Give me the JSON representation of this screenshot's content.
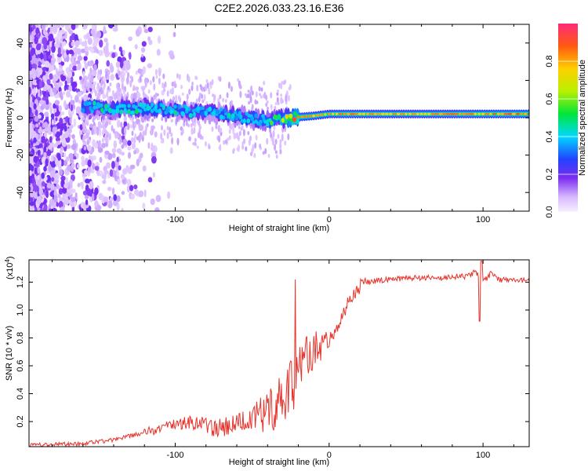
{
  "figure_title": "C2E2.2026.033.23.16.E36",
  "chart_data": [
    {
      "type": "heatmap",
      "title": "C2E2.2026.033.23.16.E36",
      "xlabel": "Height of straight line (km)",
      "ylabel": "Frequency (Hz)",
      "xlim": [
        -195,
        130
      ],
      "ylim": [
        -50,
        50
      ],
      "x_ticks": [
        -100,
        0,
        100
      ],
      "y_ticks": [
        -40,
        -20,
        0,
        20,
        40
      ],
      "colorbar": {
        "label": "Normalized spectral amplitude",
        "range": [
          0,
          1
        ],
        "ticks": [
          0.0,
          0.2,
          0.4,
          0.6,
          0.8
        ]
      },
      "ridge": {
        "x": [
          -160,
          -140,
          -120,
          -100,
          -80,
          -60,
          -45,
          -35,
          -25,
          -10,
          0,
          10,
          50,
          90,
          130
        ],
        "freq": [
          6,
          5,
          5,
          4,
          3,
          1,
          -1,
          -2,
          0,
          1,
          2,
          2,
          2,
          2,
          2
        ],
        "amplitude": [
          0.45,
          0.5,
          0.48,
          0.45,
          0.42,
          0.45,
          0.5,
          0.55,
          0.9,
          0.85,
          0.8,
          0.85,
          0.8,
          0.85,
          0.9
        ]
      }
    },
    {
      "type": "line",
      "xlabel": "Height of straight line (km)",
      "ylabel": "SNR (10 * v/v)",
      "scale_label": "(x10",
      "scale_exponent": "4",
      "xlim": [
        -195,
        130
      ],
      "ylim": [
        0.02,
        1.36
      ],
      "x_ticks": [
        -100,
        0,
        100
      ],
      "y_ticks": [
        0.2,
        0.4,
        0.6,
        0.8,
        1.0,
        1.2
      ],
      "series": [
        {
          "name": "SNR",
          "color": "#e8322a",
          "x": [
            -195,
            -160,
            -140,
            -120,
            -100,
            -90,
            -80,
            -70,
            -60,
            -50,
            -40,
            -30,
            -25,
            -20,
            -15,
            -10,
            -5,
            0,
            5,
            10,
            15,
            20,
            25,
            30,
            40,
            50,
            60,
            70,
            80,
            90,
            95,
            100,
            105,
            110,
            120,
            130
          ],
          "values": [
            0.03,
            0.04,
            0.07,
            0.12,
            0.18,
            0.2,
            0.17,
            0.15,
            0.18,
            0.22,
            0.27,
            0.35,
            0.45,
            0.55,
            0.65,
            0.72,
            0.75,
            0.78,
            0.88,
            1.0,
            1.1,
            1.17,
            1.2,
            1.21,
            1.22,
            1.23,
            1.23,
            1.23,
            1.24,
            1.24,
            1.28,
            1.2,
            1.26,
            1.22,
            1.21,
            1.22
          ]
        }
      ]
    }
  ]
}
